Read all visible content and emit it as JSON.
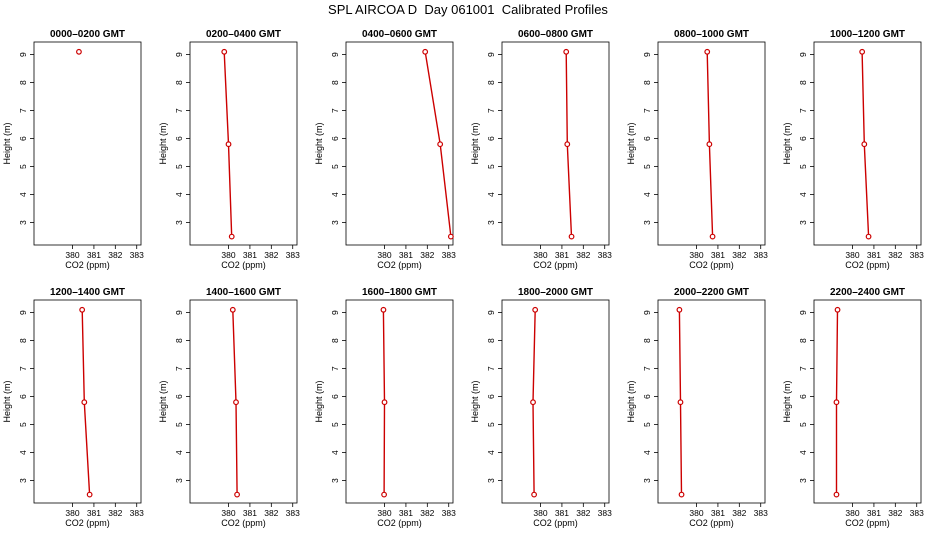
{
  "title": "SPL AIRCOA D  Day 061001  Calibrated Profiles",
  "chart_data": {
    "type": "line",
    "xlabel": "CO2 (ppm)",
    "ylabel": "Height (m)",
    "xlim": [
      378.2,
      383.2
    ],
    "ylim": [
      2.2,
      9.45
    ],
    "xticks": [
      380,
      381,
      382,
      383
    ],
    "yticks": [
      3,
      4,
      5,
      6,
      7,
      8,
      9
    ],
    "line_color": "#cc0000",
    "panels": [
      {
        "title": "0000–0200 GMT",
        "points": [
          {
            "x": 380.3,
            "y": 9.1
          }
        ]
      },
      {
        "title": "0200–0400 GMT",
        "points": [
          {
            "x": 379.8,
            "y": 9.1
          },
          {
            "x": 380.0,
            "y": 5.8
          },
          {
            "x": 380.15,
            "y": 2.5
          }
        ]
      },
      {
        "title": "0400–0600 GMT",
        "points": [
          {
            "x": 381.9,
            "y": 9.1
          },
          {
            "x": 382.6,
            "y": 5.8
          },
          {
            "x": 383.1,
            "y": 2.5
          }
        ]
      },
      {
        "title": "0600–0800 GMT",
        "points": [
          {
            "x": 381.2,
            "y": 9.1
          },
          {
            "x": 381.25,
            "y": 5.8
          },
          {
            "x": 381.45,
            "y": 2.5
          }
        ]
      },
      {
        "title": "0800–1000 GMT",
        "points": [
          {
            "x": 380.5,
            "y": 9.1
          },
          {
            "x": 380.6,
            "y": 5.8
          },
          {
            "x": 380.75,
            "y": 2.5
          }
        ]
      },
      {
        "title": "1000–1200 GMT",
        "points": [
          {
            "x": 380.45,
            "y": 9.1
          },
          {
            "x": 380.55,
            "y": 5.8
          },
          {
            "x": 380.75,
            "y": 2.5
          }
        ]
      },
      {
        "title": "1200–1400 GMT",
        "points": [
          {
            "x": 380.45,
            "y": 9.1
          },
          {
            "x": 380.55,
            "y": 5.8
          },
          {
            "x": 380.8,
            "y": 2.5
          }
        ]
      },
      {
        "title": "1400–1600 GMT",
        "points": [
          {
            "x": 380.2,
            "y": 9.1
          },
          {
            "x": 380.35,
            "y": 5.8
          },
          {
            "x": 380.4,
            "y": 2.5
          }
        ]
      },
      {
        "title": "1600–1800 GMT",
        "points": [
          {
            "x": 379.95,
            "y": 9.1
          },
          {
            "x": 380.0,
            "y": 5.8
          },
          {
            "x": 379.98,
            "y": 2.5
          }
        ]
      },
      {
        "title": "1800–2000 GMT",
        "points": [
          {
            "x": 379.75,
            "y": 9.1
          },
          {
            "x": 379.65,
            "y": 5.8
          },
          {
            "x": 379.7,
            "y": 2.5
          }
        ]
      },
      {
        "title": "2000–2200 GMT",
        "points": [
          {
            "x": 379.2,
            "y": 9.1
          },
          {
            "x": 379.25,
            "y": 5.8
          },
          {
            "x": 379.3,
            "y": 2.5
          }
        ]
      },
      {
        "title": "2200–2400 GMT",
        "points": [
          {
            "x": 379.3,
            "y": 9.1
          },
          {
            "x": 379.25,
            "y": 5.8
          },
          {
            "x": 379.25,
            "y": 2.5
          }
        ]
      }
    ]
  }
}
